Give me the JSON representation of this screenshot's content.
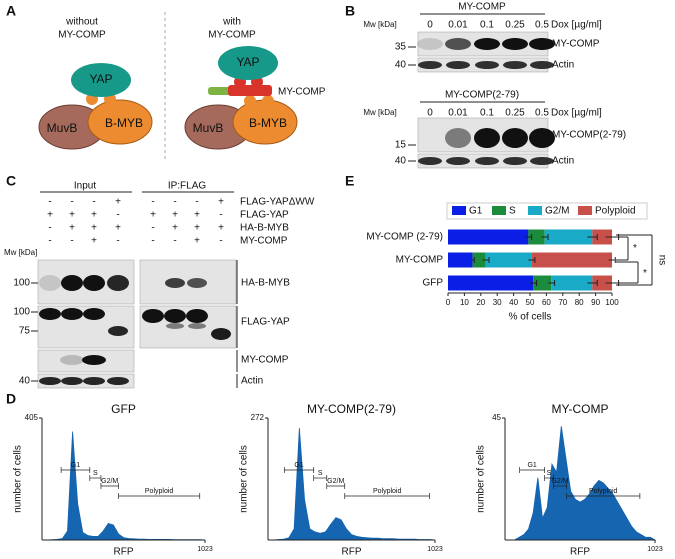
{
  "panels": {
    "A": {
      "label": "A",
      "without": [
        "without",
        "MY-COMP"
      ],
      "with": [
        "with",
        "MY-COMP"
      ],
      "left": {
        "yap": "YAP",
        "muvb": "MuvB",
        "bmyb": "B-MYB"
      },
      "right": {
        "yap": "YAP",
        "mycomp": "MY-COMP",
        "muvb": "MuvB",
        "bmyb": "B-MYB"
      }
    },
    "B": {
      "label": "B",
      "blots": [
        {
          "title": "MY-COMP",
          "mw": "Mw [kDa]",
          "doses": [
            "0",
            "0.01",
            "0.1",
            "0.25",
            "0.5"
          ],
          "dose_unit": "Dox [µg/ml]",
          "markers": [
            "35",
            "40"
          ],
          "bands": [
            "MY-COMP",
            "Actin"
          ]
        },
        {
          "title": "MY-COMP(2-79)",
          "mw": "Mw [kDa]",
          "doses": [
            "0",
            "0.01",
            "0.1",
            "0.25",
            "0.5"
          ],
          "dose_unit": "Dox [µg/ml]",
          "markers": [
            "15",
            "40"
          ],
          "bands": [
            "MY-COMP(2-79)",
            "Actin"
          ]
        }
      ]
    },
    "C": {
      "label": "C",
      "groups": [
        "Input",
        "IP:FLAG"
      ],
      "rows": [
        {
          "name": "FLAG-YAPΔWW",
          "signs": [
            "-",
            "-",
            "-",
            "+",
            "-",
            "-",
            "-",
            "+"
          ]
        },
        {
          "name": "FLAG-YAP",
          "signs": [
            "+",
            "+",
            "+",
            "-",
            "+",
            "+",
            "+",
            "-"
          ]
        },
        {
          "name": "HA-B-MYB",
          "signs": [
            "-",
            "+",
            "+",
            "+",
            "-",
            "+",
            "+",
            "+"
          ]
        },
        {
          "name": "MY-COMP",
          "signs": [
            "-",
            "-",
            "+",
            "-",
            "-",
            "-",
            "+",
            "-"
          ]
        }
      ],
      "mw": "Mw [kDa]",
      "markers": [
        "100",
        "100",
        "75",
        "40"
      ],
      "blots": [
        "HA-B-MYB",
        "FLAG-YAP",
        "MY-COMP",
        "Actin"
      ]
    },
    "D": {
      "label": "D"
    },
    "E": {
      "label": "E"
    }
  },
  "chart_data": [
    {
      "type": "stacked-bar",
      "orientation": "horizontal",
      "categories": [
        "MY-COMP (2-79)",
        "MY-COMP",
        "GFP"
      ],
      "series": [
        {
          "name": "G1",
          "color": "#0a1ee6",
          "values": [
            49,
            15,
            52
          ],
          "errors": [
            2,
            1,
            2
          ]
        },
        {
          "name": "S",
          "color": "#1a8c3c",
          "values": [
            10,
            8,
            11
          ],
          "errors": [
            2,
            2,
            2
          ]
        },
        {
          "name": "G2/M",
          "color": "#19aac8",
          "values": [
            29,
            28,
            25
          ],
          "errors": [
            3,
            2,
            3
          ]
        },
        {
          "name": "Polyploid",
          "color": "#c8504b",
          "values": [
            12,
            49,
            12
          ],
          "errors": [
            4,
            2,
            4
          ]
        }
      ],
      "xlim": [
        0,
        100
      ],
      "xticks": [
        0,
        10,
        20,
        30,
        40,
        50,
        60,
        70,
        80,
        90,
        100
      ],
      "xlabel": "% of cells",
      "annotations": [
        "*",
        "*",
        "ns"
      ],
      "legend": "top"
    },
    {
      "type": "area",
      "title": "GFP",
      "color": "#1565b0",
      "x": [
        0,
        32,
        64,
        96,
        128,
        160,
        192,
        224,
        256,
        288,
        320,
        352,
        384,
        416,
        448,
        480,
        512,
        544,
        576,
        608,
        640,
        672,
        704,
        736,
        768,
        800,
        832,
        864,
        896,
        928,
        960,
        992,
        1023
      ],
      "values": [
        0,
        0,
        1,
        2,
        5,
        30,
        360,
        120,
        25,
        15,
        12,
        12,
        30,
        55,
        50,
        20,
        8,
        5,
        4,
        3,
        3,
        2,
        2,
        2,
        2,
        2,
        1,
        1,
        1,
        1,
        1,
        1,
        0
      ],
      "xlim": [
        0,
        1023
      ],
      "ylim": [
        0,
        405
      ],
      "xticks": [
        1023
      ],
      "yticks": [
        405
      ],
      "xlabel": "RFP",
      "ylabel": "number of cells",
      "gates": [
        {
          "label": "G1",
          "range": [
            120,
            300
          ]
        },
        {
          "label": "S",
          "range": [
            300,
            370
          ]
        },
        {
          "label": "G2/M",
          "range": [
            370,
            480
          ]
        },
        {
          "label": "Polyploid",
          "range": [
            480,
            990
          ]
        }
      ]
    },
    {
      "type": "area",
      "title": "MY-COMP(2-79)",
      "color": "#1565b0",
      "x": [
        0,
        32,
        64,
        96,
        128,
        160,
        192,
        224,
        256,
        288,
        320,
        352,
        384,
        416,
        448,
        480,
        512,
        544,
        576,
        608,
        640,
        672,
        704,
        736,
        768,
        800,
        832,
        864,
        896,
        928,
        960,
        992,
        1023
      ],
      "values": [
        0,
        0,
        1,
        2,
        5,
        25,
        250,
        90,
        25,
        18,
        15,
        18,
        35,
        50,
        45,
        25,
        12,
        8,
        6,
        5,
        4,
        4,
        3,
        3,
        3,
        2,
        2,
        2,
        2,
        1,
        1,
        1,
        0
      ],
      "xlim": [
        0,
        1023
      ],
      "ylim": [
        0,
        272
      ],
      "xticks": [
        1023
      ],
      "yticks": [
        272
      ],
      "xlabel": "RFP",
      "ylabel": "number of cells",
      "gates": [
        {
          "label": "G1",
          "range": [
            100,
            280
          ]
        },
        {
          "label": "S",
          "range": [
            280,
            360
          ]
        },
        {
          "label": "G2/M",
          "range": [
            360,
            470
          ]
        },
        {
          "label": "Polyploid",
          "range": [
            470,
            990
          ]
        }
      ]
    },
    {
      "type": "area",
      "title": "MY-COMP",
      "color": "#1565b0",
      "x": [
        0,
        32,
        64,
        96,
        128,
        160,
        192,
        224,
        256,
        288,
        320,
        352,
        384,
        416,
        448,
        480,
        512,
        544,
        576,
        608,
        640,
        672,
        704,
        736,
        768,
        800,
        832,
        864,
        896,
        928,
        960,
        992,
        1023
      ],
      "values": [
        0,
        0,
        0,
        1,
        2,
        4,
        10,
        23,
        8,
        12,
        28,
        25,
        42,
        30,
        18,
        15,
        14,
        15,
        17,
        20,
        22,
        21,
        19,
        17,
        14,
        11,
        8,
        5,
        3,
        2,
        1,
        1,
        0
      ],
      "xlim": [
        0,
        1023
      ],
      "ylim": [
        0,
        45
      ],
      "xticks": [
        1023
      ],
      "yticks": [
        45
      ],
      "xlabel": "RFP",
      "ylabel": "number of cells",
      "gates": [
        {
          "label": "G1",
          "range": [
            100,
            270
          ]
        },
        {
          "label": "S",
          "range": [
            270,
            330
          ]
        },
        {
          "label": "G2/M",
          "range": [
            330,
            420
          ]
        },
        {
          "label": "Polyploid",
          "range": [
            420,
            920
          ]
        }
      ]
    }
  ]
}
